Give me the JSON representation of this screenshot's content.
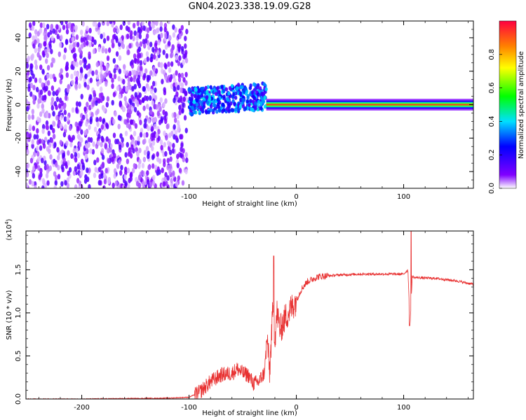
{
  "title": "GN04.2023.338.19.09.G28",
  "chart_data": [
    {
      "type": "heatmap",
      "xlabel": "Height of straight line (km)",
      "ylabel": "Frequency (Hz)",
      "xlim": [
        -252,
        165
      ],
      "ylim": [
        -50,
        50
      ],
      "xticks": [
        -200,
        -100,
        0,
        100
      ],
      "yticks": [
        -40,
        -20,
        0,
        20,
        40
      ],
      "xtick_labels": [
        "-200",
        "-100",
        "0",
        "100"
      ],
      "ytick_labels": [
        "-40",
        "-20",
        "0",
        "20",
        "40"
      ],
      "colorbar": {
        "label": "Normalized spectral amplitude",
        "range": [
          0,
          1
        ],
        "ticks": [
          0.0,
          0.2,
          0.4,
          0.6,
          0.8
        ],
        "tick_labels": [
          "0.0",
          "0.2",
          "0.4",
          "0.6",
          "0.8"
        ]
      },
      "features": [
        {
          "x_range": [
            -252,
            -100
          ],
          "freq_range": [
            -50,
            50
          ],
          "amplitude": "low (0.0–0.15), noise"
        },
        {
          "x_range": [
            -100,
            -28
          ],
          "freq_center": 2,
          "freq_halfwidth": 8,
          "amplitude": "0.2–0.45"
        },
        {
          "x_range": [
            -28,
            165
          ],
          "freq_center": 0,
          "freq_halfwidth": 3,
          "amplitude": "0.5–1.0, peak at 0 Hz"
        }
      ]
    },
    {
      "type": "line",
      "xlabel": "Height of straight line (km)",
      "ylabel": "SNR (10 * v/v)",
      "multiplier_label": "(x10",
      "multiplier_exp": "4",
      "xlim": [
        -252,
        165
      ],
      "ylim": [
        0,
        1.95
      ],
      "xticks": [
        -200,
        -100,
        0,
        100
      ],
      "yticks": [
        0.0,
        0.5,
        1.0,
        1.5
      ],
      "xtick_labels": [
        "-200",
        "-100",
        "0",
        "100"
      ],
      "ytick_labels": [
        "0.0",
        "0.5",
        "1.0",
        "1.5"
      ],
      "series": [
        {
          "color": "#e83030",
          "x": [
            -252,
            -200,
            -120,
            -100,
            -90,
            -80,
            -70,
            -60,
            -55,
            -50,
            -45,
            -40,
            -35,
            -30,
            -27,
            -25,
            -22,
            -20,
            -18,
            -15,
            -12,
            -10,
            -5,
            0,
            5,
            10,
            20,
            30,
            40,
            60,
            80,
            100,
            104,
            106,
            108,
            110,
            130,
            150,
            165
          ],
          "y": [
            0.0,
            0.0,
            0.01,
            0.02,
            0.08,
            0.2,
            0.28,
            0.3,
            0.35,
            0.3,
            0.28,
            0.18,
            0.2,
            0.3,
            0.7,
            0.3,
            1.0,
            0.7,
            1.0,
            0.8,
            0.9,
            0.95,
            1.05,
            1.15,
            1.28,
            1.36,
            1.42,
            1.43,
            1.44,
            1.45,
            1.45,
            1.45,
            1.5,
            0.85,
            1.42,
            1.41,
            1.4,
            1.37,
            1.33
          ]
        }
      ],
      "annotations": [
        {
          "x": -21,
          "y": 1.65,
          "note": "spike"
        },
        {
          "x": 107,
          "y": 1.95,
          "note": "spike"
        }
      ]
    }
  ]
}
